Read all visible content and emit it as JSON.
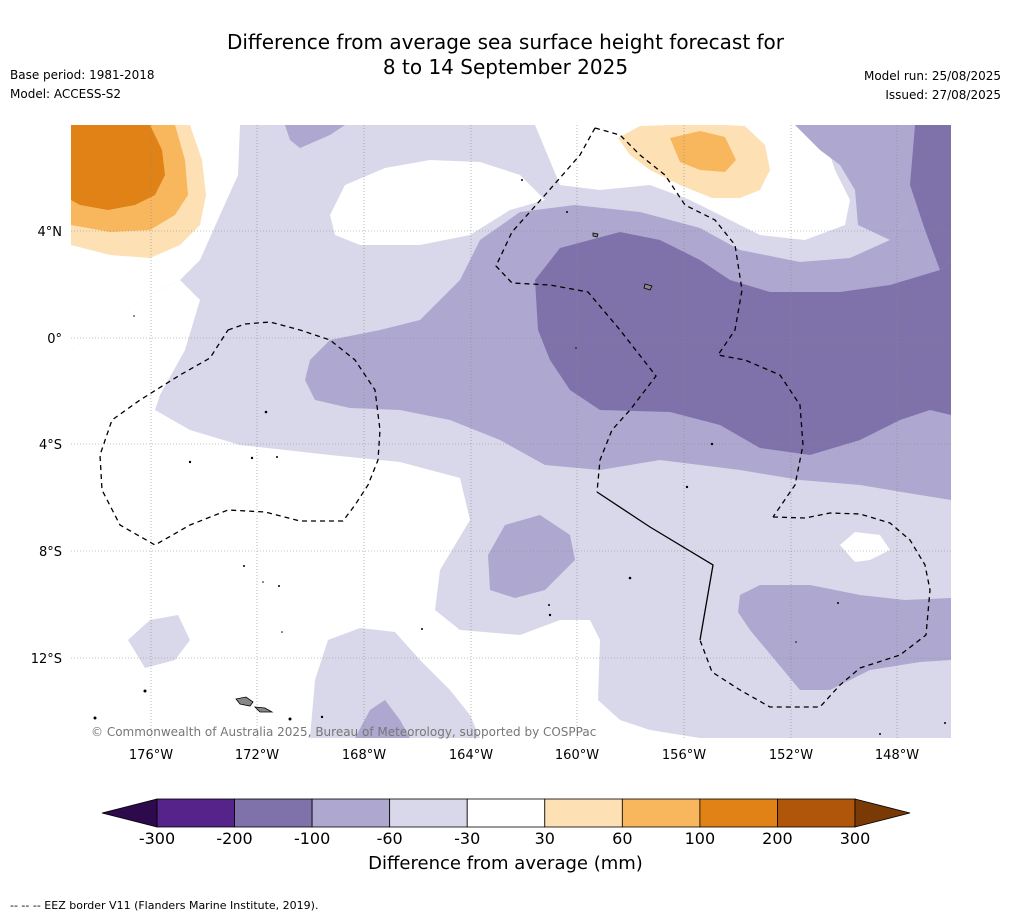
{
  "title_line1": "Difference from average sea surface height forecast for",
  "title_line2": "8 to 14 September 2025",
  "base_period": "Base period: 1981-2018",
  "model": "Model: ACCESS-S2",
  "model_run": "Model run: 25/08/2025",
  "issued": "Issued: 27/08/2025",
  "copyright": "© Commonwealth of Australia 2025, Bureau of Meteorology, supported by COSPPac",
  "lat_labels": [
    "4°N",
    "0°",
    "4°S",
    "8°S",
    "12°S"
  ],
  "lon_labels": [
    "176°W",
    "172°W",
    "168°W",
    "164°W",
    "160°W",
    "156°W",
    "152°W",
    "148°W"
  ],
  "colorbar": {
    "ticks": [
      "-300",
      "-200",
      "-100",
      "-60",
      "-30",
      "30",
      "60",
      "100",
      "200",
      "300"
    ],
    "colors": [
      "#56238a",
      "#7f72ab",
      "#aea7cf",
      "#d8d8ea",
      "#ffffff",
      "#fee0b5",
      "#f8b75d",
      "#e08216",
      "#b0560b"
    ],
    "under_color": "#2c0a4b",
    "over_color": "#7a3a06",
    "label": "Difference from average (mm)"
  },
  "footer": "--  --  -- EEZ border V11 (Flanders Marine Institute, 2019)."
}
